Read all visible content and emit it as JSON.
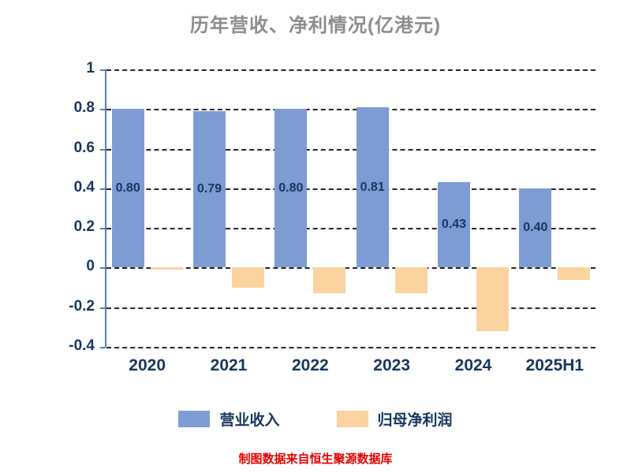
{
  "chart_data": {
    "type": "bar",
    "title": "历年营收、净利情况(亿港元)",
    "categories": [
      "2020",
      "2021",
      "2022",
      "2023",
      "2024",
      "2025H1"
    ],
    "series": [
      {
        "name": "营业收入",
        "color": "#7d9cd4",
        "values": [
          0.8,
          0.79,
          0.8,
          0.81,
          0.43,
          0.4
        ],
        "labels": [
          "0.80",
          "0.79",
          "0.80",
          "0.81",
          "0.43",
          "0.40"
        ]
      },
      {
        "name": "归母净利润",
        "color": "#fbd39e",
        "values": [
          -0.01,
          -0.1,
          -0.13,
          -0.13,
          -0.32,
          -0.06
        ],
        "labels": [
          "",
          "",
          "",
          "",
          "",
          ""
        ]
      }
    ],
    "ylim": [
      -0.4,
      1
    ],
    "yticks": [
      {
        "value": 1,
        "label": "1"
      },
      {
        "value": 0.8,
        "label": "0.8"
      },
      {
        "value": 0.6,
        "label": "0.6"
      },
      {
        "value": 0.4,
        "label": "0.4"
      },
      {
        "value": 0.2,
        "label": "0.2"
      },
      {
        "value": 0,
        "label": "0"
      },
      {
        "value": -0.2,
        "label": "-0.2"
      },
      {
        "value": -0.4,
        "label": "-0.4"
      }
    ],
    "grid": true,
    "legend_position": "bottom"
  },
  "footer": {
    "text": "制图数据来自恒生聚源数据库"
  },
  "colors": {
    "title": "#8c8c8c",
    "axis_line": "#4f81bd",
    "tick_label": "#16365c",
    "gridline": "#262626",
    "footer_text": "#e60000"
  }
}
